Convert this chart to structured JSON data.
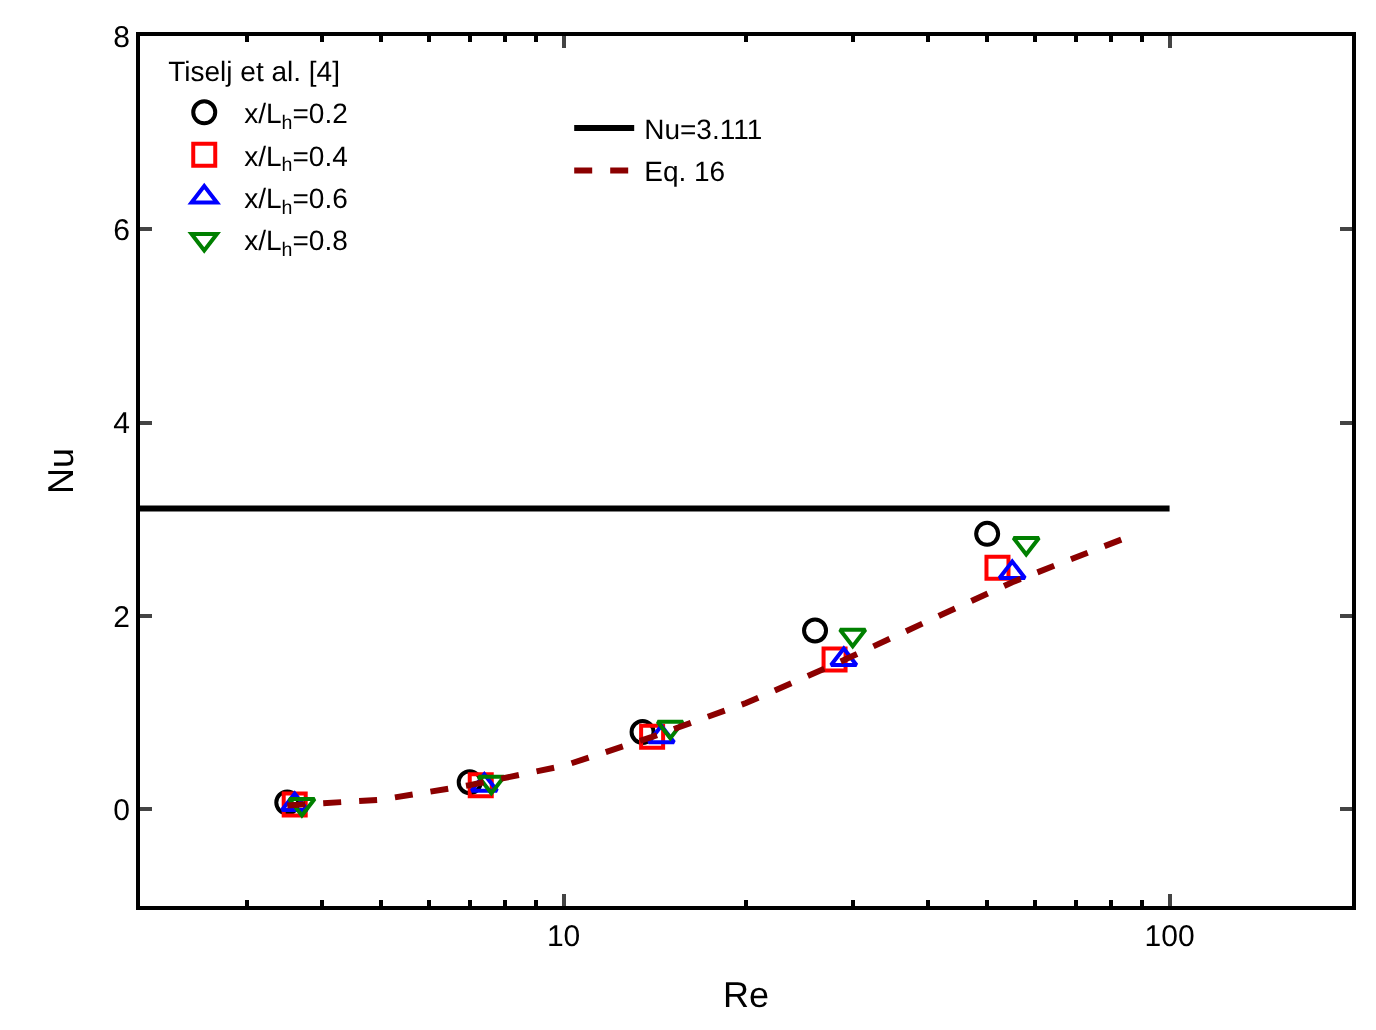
{
  "chart_data": {
    "type": "scatter",
    "xlabel": "Re",
    "ylabel": "Nu",
    "log": "x",
    "xlim": [
      2,
      200
    ],
    "xticks": [
      10,
      100
    ],
    "ylim": [
      -1,
      8
    ],
    "yticks": [
      0,
      2,
      4,
      6,
      8
    ],
    "legend": "top left",
    "legend_title": "Tiselj et al. [4]",
    "series": [
      {
        "name": "x/L$_{h}$=0.2",
        "color": "#000000",
        "marker": "circle",
        "x": [
          3.5,
          7.0,
          13.5,
          26,
          50
        ],
        "values": [
          0.07,
          0.28,
          0.8,
          1.85,
          2.85
        ]
      },
      {
        "name": "x/L$_{h}$=0.4",
        "color": "#ff0000",
        "marker": "square",
        "x": [
          3.6,
          7.3,
          14,
          28,
          52
        ],
        "values": [
          0.05,
          0.25,
          0.75,
          1.55,
          2.5
        ]
      },
      {
        "name": "x/L$_{h}$=0.6",
        "color": "#0000ff",
        "marker": "triangle",
        "x": [
          3.6,
          7.4,
          14.5,
          29,
          55
        ],
        "values": [
          0.05,
          0.25,
          0.75,
          1.55,
          2.45
        ]
      },
      {
        "name": "x/L$_{h}$=0.8",
        "color": "#008000",
        "marker": "triangle-down",
        "x": [
          3.7,
          7.6,
          15,
          30,
          58
        ],
        "values": [
          0.05,
          0.28,
          0.85,
          1.8,
          2.75
        ]
      },
      {
        "name": "Nu=3.111",
        "type": "line",
        "color": "#000000",
        "line_style": "solid",
        "x": [
          2,
          100
        ],
        "values": [
          3.111,
          3.111
        ]
      },
      {
        "name": "Eq. 16",
        "type": "line",
        "color": "#8b0000",
        "line_style": "dashed",
        "x": [
          3.5,
          5,
          7,
          10,
          14,
          20,
          28,
          40,
          55,
          84
        ],
        "values": [
          0.04,
          0.1,
          0.25,
          0.45,
          0.75,
          1.1,
          1.5,
          1.95,
          2.35,
          2.8
        ]
      }
    ]
  }
}
